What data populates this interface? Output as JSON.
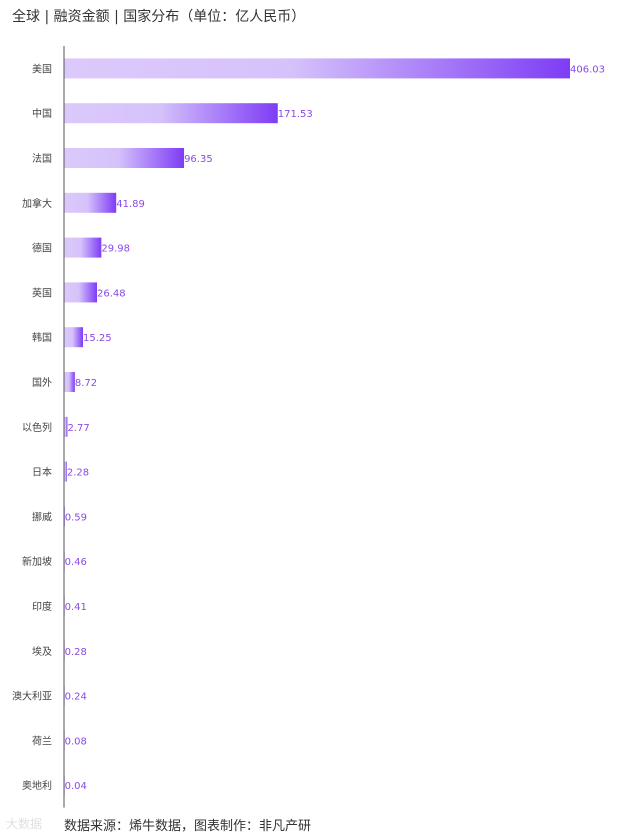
{
  "title": "全球 | 融资金额 | 国家分布（单位：亿人民币）",
  "source": "数据来源：烯牛数据，图表制作：非凡产研",
  "watermark": "大数据",
  "colors": {
    "bar_light": "#dcc9fb",
    "bar_dark": "#7e3cf5",
    "label": "#8a4be6",
    "axis": "#555555",
    "category": "#444444"
  },
  "chart_data": {
    "type": "bar",
    "orientation": "horizontal",
    "title": "全球 | 融资金额 | 国家分布（单位：亿人民币）",
    "xlabel": "",
    "ylabel": "",
    "unit": "亿人民币",
    "categories": [
      "美国",
      "中国",
      "法国",
      "加拿大",
      "德国",
      "英国",
      "韩国",
      "国外",
      "以色列",
      "日本",
      "挪威",
      "新加坡",
      "印度",
      "埃及",
      "澳大利亚",
      "荷兰",
      "奥地利"
    ],
    "values": [
      406.03,
      171.53,
      96.35,
      41.89,
      29.98,
      26.48,
      15.25,
      8.72,
      2.77,
      2.28,
      0.59,
      0.46,
      0.41,
      0.28,
      0.24,
      0.08,
      0.04
    ],
    "xlim": [
      0,
      406.03
    ],
    "grid": false,
    "legend": "none"
  }
}
